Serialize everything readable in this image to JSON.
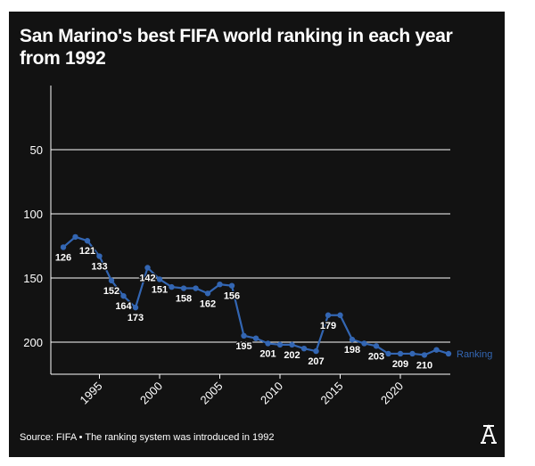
{
  "chart_data": {
    "type": "line",
    "title": "San Marino's best FIFA world ranking in each year from 1992",
    "x": [
      1992,
      1993,
      1994,
      1995,
      1996,
      1997,
      1998,
      1999,
      2000,
      2001,
      2002,
      2003,
      2004,
      2005,
      2006,
      2007,
      2008,
      2009,
      2010,
      2011,
      2012,
      2013,
      2014,
      2015,
      2016,
      2017,
      2018,
      2019,
      2020,
      2021,
      2022,
      2023,
      2024
    ],
    "series": [
      {
        "name": "Ranking",
        "color": "#3366b3",
        "values": [
          126,
          118,
          121,
          133,
          152,
          164,
          173,
          142,
          151,
          157,
          158,
          158,
          162,
          155,
          156,
          195,
          197,
          201,
          202,
          202,
          205,
          207,
          179,
          179,
          198,
          201,
          203,
          209,
          209,
          209,
          210,
          206,
          209
        ]
      }
    ],
    "data_labels": [
      {
        "year": 1992,
        "text": "126"
      },
      {
        "year": 1994,
        "text": "121"
      },
      {
        "year": 1995,
        "text": "133"
      },
      {
        "year": 1996,
        "text": "152"
      },
      {
        "year": 1997,
        "text": "164"
      },
      {
        "year": 1998,
        "text": "173"
      },
      {
        "year": 1999,
        "text": "142"
      },
      {
        "year": 2000,
        "text": "151"
      },
      {
        "year": 2002,
        "text": "158"
      },
      {
        "year": 2004,
        "text": "162"
      },
      {
        "year": 2006,
        "text": "156"
      },
      {
        "year": 2007,
        "text": "195"
      },
      {
        "year": 2009,
        "text": "201"
      },
      {
        "year": 2011,
        "text": "202"
      },
      {
        "year": 2013,
        "text": "207"
      },
      {
        "year": 2014,
        "text": "179"
      },
      {
        "year": 2016,
        "text": "198"
      },
      {
        "year": 2018,
        "text": "203"
      },
      {
        "year": 2020,
        "text": "209"
      },
      {
        "year": 2022,
        "text": "210"
      }
    ],
    "y_ticks": [
      "50",
      "100",
      "150",
      "200"
    ],
    "y_tick_values": [
      50,
      100,
      150,
      200
    ],
    "x_ticks": [
      "1995",
      "2000",
      "2005",
      "2010",
      "2015",
      "2020"
    ],
    "x_tick_values": [
      1995,
      2000,
      2005,
      2010,
      2015,
      2020
    ],
    "ylim": [
      0,
      225
    ],
    "y_inverted": true,
    "xlim": [
      1991,
      2024.1
    ],
    "grid": true,
    "legend": "right-end-label",
    "xlabel": "",
    "ylabel": ""
  },
  "footer": "Source: FIFA • The ranking system was introduced in 1992",
  "logo_text": "A",
  "colors": {
    "background": "#121212",
    "text": "#ffffff",
    "line": "#3366b3"
  }
}
